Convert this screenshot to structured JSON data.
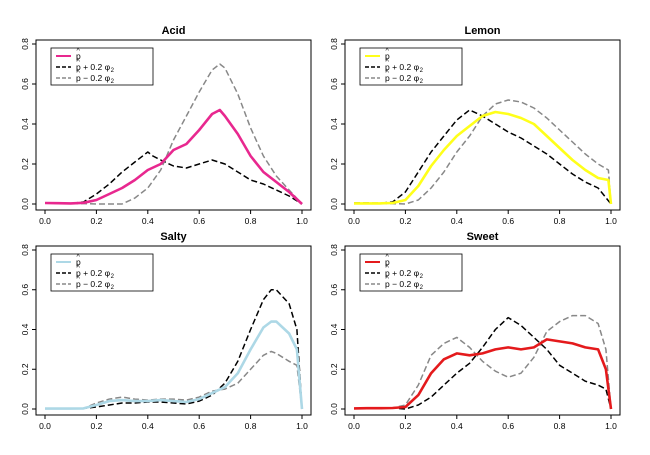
{
  "chart_data": [
    {
      "type": "line",
      "title": "Acid",
      "xlabel": "",
      "ylabel": "",
      "xlim": [
        0,
        1
      ],
      "ylim": [
        0,
        0.8
      ],
      "x_ticks": [
        "0.0",
        "0.2",
        "0.4",
        "0.6",
        "0.8",
        "1.0"
      ],
      "y_ticks": [
        "0.0",
        "0.2",
        "0.4",
        "0.6",
        "0.8"
      ],
      "legend_position": "top-left",
      "grid": false,
      "series": [
        {
          "name": "p",
          "color": "#e8288f",
          "dash": "solid",
          "x": [
            0,
            0.05,
            0.1,
            0.15,
            0.2,
            0.25,
            0.3,
            0.35,
            0.4,
            0.45,
            0.5,
            0.55,
            0.6,
            0.65,
            0.68,
            0.7,
            0.75,
            0.8,
            0.85,
            0.9,
            0.95,
            1.0
          ],
          "y": [
            0.005,
            0.004,
            0.003,
            0.006,
            0.02,
            0.05,
            0.08,
            0.12,
            0.17,
            0.2,
            0.27,
            0.3,
            0.37,
            0.45,
            0.47,
            0.44,
            0.35,
            0.24,
            0.16,
            0.11,
            0.06,
            0.0
          ]
        },
        {
          "name": "p + 0.2 φ",
          "color": "#000000",
          "dash": "dashed",
          "x": [
            0,
            0.05,
            0.1,
            0.15,
            0.2,
            0.25,
            0.3,
            0.35,
            0.4,
            0.42,
            0.45,
            0.5,
            0.55,
            0.6,
            0.65,
            0.7,
            0.75,
            0.8,
            0.85,
            0.9,
            0.95,
            1.0
          ],
          "y": [
            0.005,
            0.004,
            0.003,
            0.01,
            0.05,
            0.1,
            0.16,
            0.21,
            0.26,
            0.24,
            0.22,
            0.19,
            0.18,
            0.2,
            0.22,
            0.2,
            0.16,
            0.12,
            0.1,
            0.07,
            0.04,
            0.0
          ]
        },
        {
          "name": "p − 0.2 φ",
          "color": "#888888",
          "dash": "dashed",
          "x": [
            0,
            0.05,
            0.1,
            0.15,
            0.2,
            0.25,
            0.3,
            0.35,
            0.4,
            0.45,
            0.5,
            0.55,
            0.6,
            0.65,
            0.68,
            0.7,
            0.75,
            0.8,
            0.85,
            0.9,
            0.95,
            1.0
          ],
          "y": [
            0.004,
            0.003,
            0.002,
            0.002,
            0.0,
            0.0,
            0.0,
            0.03,
            0.08,
            0.17,
            0.32,
            0.44,
            0.56,
            0.67,
            0.7,
            0.68,
            0.55,
            0.38,
            0.24,
            0.14,
            0.07,
            0.0
          ]
        }
      ]
    },
    {
      "type": "line",
      "title": "Lemon",
      "xlabel": "",
      "ylabel": "",
      "xlim": [
        0,
        1
      ],
      "ylim": [
        0,
        0.8
      ],
      "x_ticks": [
        "0.0",
        "0.2",
        "0.4",
        "0.6",
        "0.8",
        "1.0"
      ],
      "y_ticks": [
        "0.0",
        "0.2",
        "0.4",
        "0.6",
        "0.8"
      ],
      "legend_position": "top-left",
      "grid": false,
      "series": [
        {
          "name": "p",
          "color": "#ffff1a",
          "dash": "solid",
          "x": [
            0,
            0.05,
            0.1,
            0.15,
            0.2,
            0.25,
            0.3,
            0.35,
            0.4,
            0.45,
            0.5,
            0.55,
            0.6,
            0.65,
            0.7,
            0.75,
            0.8,
            0.85,
            0.9,
            0.95,
            0.99,
            1.0
          ],
          "y": [
            0.003,
            0.003,
            0.003,
            0.005,
            0.02,
            0.09,
            0.19,
            0.27,
            0.34,
            0.39,
            0.44,
            0.46,
            0.45,
            0.43,
            0.4,
            0.34,
            0.28,
            0.22,
            0.17,
            0.13,
            0.12,
            0.0
          ]
        },
        {
          "name": "p + 0.2 φ",
          "color": "#000000",
          "dash": "dashed",
          "x": [
            0,
            0.05,
            0.1,
            0.15,
            0.2,
            0.25,
            0.3,
            0.35,
            0.4,
            0.45,
            0.5,
            0.55,
            0.6,
            0.65,
            0.7,
            0.75,
            0.8,
            0.85,
            0.9,
            0.95,
            1.0
          ],
          "y": [
            0.005,
            0.005,
            0.004,
            0.01,
            0.06,
            0.16,
            0.26,
            0.34,
            0.42,
            0.47,
            0.44,
            0.4,
            0.36,
            0.33,
            0.29,
            0.25,
            0.2,
            0.15,
            0.11,
            0.08,
            0.0
          ]
        },
        {
          "name": "p − 0.2 φ",
          "color": "#888888",
          "dash": "dashed",
          "x": [
            0,
            0.05,
            0.1,
            0.15,
            0.2,
            0.25,
            0.3,
            0.35,
            0.4,
            0.45,
            0.5,
            0.55,
            0.6,
            0.65,
            0.7,
            0.75,
            0.8,
            0.85,
            0.9,
            0.95,
            0.99,
            1.0
          ],
          "y": [
            0.002,
            0.001,
            0.001,
            0.002,
            0.0,
            0.02,
            0.08,
            0.16,
            0.26,
            0.34,
            0.44,
            0.5,
            0.52,
            0.51,
            0.48,
            0.43,
            0.37,
            0.31,
            0.25,
            0.2,
            0.17,
            0.0
          ]
        }
      ]
    },
    {
      "type": "line",
      "title": "Salty",
      "xlabel": "",
      "ylabel": "",
      "xlim": [
        0,
        1
      ],
      "ylim": [
        0,
        0.8
      ],
      "x_ticks": [
        "0.0",
        "0.2",
        "0.4",
        "0.6",
        "0.8",
        "1.0"
      ],
      "y_ticks": [
        "0.0",
        "0.2",
        "0.4",
        "0.6",
        "0.8"
      ],
      "legend_position": "top-left",
      "grid": false,
      "series": [
        {
          "name": "p",
          "color": "#add8e6",
          "dash": "solid",
          "x": [
            0,
            0.05,
            0.1,
            0.15,
            0.2,
            0.25,
            0.3,
            0.35,
            0.4,
            0.45,
            0.5,
            0.55,
            0.6,
            0.65,
            0.7,
            0.75,
            0.8,
            0.85,
            0.88,
            0.9,
            0.95,
            0.98,
            1.0
          ],
          "y": [
            0.002,
            0.002,
            0.002,
            0.003,
            0.02,
            0.04,
            0.045,
            0.04,
            0.04,
            0.045,
            0.04,
            0.035,
            0.05,
            0.08,
            0.11,
            0.18,
            0.3,
            0.41,
            0.44,
            0.44,
            0.38,
            0.3,
            0.0
          ]
        },
        {
          "name": "p + 0.2 φ",
          "color": "#000000",
          "dash": "dashed",
          "x": [
            0,
            0.05,
            0.1,
            0.15,
            0.2,
            0.25,
            0.3,
            0.35,
            0.4,
            0.45,
            0.5,
            0.55,
            0.6,
            0.65,
            0.7,
            0.75,
            0.8,
            0.85,
            0.88,
            0.9,
            0.95,
            0.98,
            1.0
          ],
          "y": [
            0.003,
            0.003,
            0.003,
            0.003,
            0.01,
            0.02,
            0.03,
            0.03,
            0.035,
            0.035,
            0.03,
            0.025,
            0.04,
            0.07,
            0.13,
            0.24,
            0.4,
            0.55,
            0.6,
            0.6,
            0.53,
            0.4,
            0.0
          ]
        },
        {
          "name": "p − 0.2 φ",
          "color": "#888888",
          "dash": "dashed",
          "x": [
            0,
            0.05,
            0.1,
            0.15,
            0.2,
            0.25,
            0.3,
            0.35,
            0.4,
            0.45,
            0.5,
            0.55,
            0.6,
            0.65,
            0.7,
            0.75,
            0.8,
            0.85,
            0.88,
            0.9,
            0.95,
            0.98,
            1.0
          ],
          "y": [
            0.002,
            0.002,
            0.002,
            0.003,
            0.03,
            0.05,
            0.06,
            0.05,
            0.045,
            0.05,
            0.05,
            0.045,
            0.06,
            0.09,
            0.1,
            0.13,
            0.2,
            0.27,
            0.29,
            0.28,
            0.24,
            0.22,
            0.0
          ]
        }
      ]
    },
    {
      "type": "line",
      "title": "Sweet",
      "xlabel": "",
      "ylabel": "",
      "xlim": [
        0,
        1
      ],
      "ylim": [
        0,
        0.8
      ],
      "x_ticks": [
        "0.0",
        "0.2",
        "0.4",
        "0.6",
        "0.8",
        "1.0"
      ],
      "y_ticks": [
        "0.0",
        "0.2",
        "0.4",
        "0.6",
        "0.8"
      ],
      "legend_position": "top-left",
      "grid": false,
      "series": [
        {
          "name": "p",
          "color": "#e41a1c",
          "dash": "solid",
          "x": [
            0,
            0.05,
            0.1,
            0.15,
            0.2,
            0.25,
            0.3,
            0.35,
            0.4,
            0.45,
            0.5,
            0.55,
            0.6,
            0.65,
            0.7,
            0.75,
            0.8,
            0.85,
            0.9,
            0.95,
            0.98,
            1.0
          ],
          "y": [
            0.003,
            0.004,
            0.004,
            0.005,
            0.01,
            0.07,
            0.18,
            0.25,
            0.28,
            0.27,
            0.28,
            0.3,
            0.31,
            0.3,
            0.31,
            0.35,
            0.34,
            0.33,
            0.31,
            0.3,
            0.2,
            0.0
          ]
        },
        {
          "name": "p + 0.2 φ",
          "color": "#000000",
          "dash": "dashed",
          "x": [
            0,
            0.05,
            0.1,
            0.15,
            0.2,
            0.25,
            0.3,
            0.35,
            0.4,
            0.45,
            0.5,
            0.55,
            0.6,
            0.65,
            0.7,
            0.75,
            0.8,
            0.85,
            0.9,
            0.95,
            0.98,
            1.0
          ],
          "y": [
            0.003,
            0.004,
            0.004,
            0.005,
            0.0,
            0.02,
            0.06,
            0.12,
            0.18,
            0.23,
            0.31,
            0.4,
            0.46,
            0.42,
            0.36,
            0.3,
            0.22,
            0.18,
            0.14,
            0.12,
            0.1,
            0.0
          ]
        },
        {
          "name": "p − 0.2 φ",
          "color": "#888888",
          "dash": "dashed",
          "x": [
            0,
            0.05,
            0.1,
            0.15,
            0.2,
            0.25,
            0.3,
            0.35,
            0.4,
            0.45,
            0.5,
            0.55,
            0.6,
            0.65,
            0.7,
            0.75,
            0.8,
            0.85,
            0.9,
            0.95,
            0.98,
            1.0
          ],
          "y": [
            0.003,
            0.004,
            0.004,
            0.005,
            0.02,
            0.12,
            0.27,
            0.33,
            0.36,
            0.31,
            0.24,
            0.19,
            0.16,
            0.18,
            0.26,
            0.39,
            0.44,
            0.47,
            0.47,
            0.43,
            0.3,
            0.0
          ]
        }
      ]
    }
  ]
}
